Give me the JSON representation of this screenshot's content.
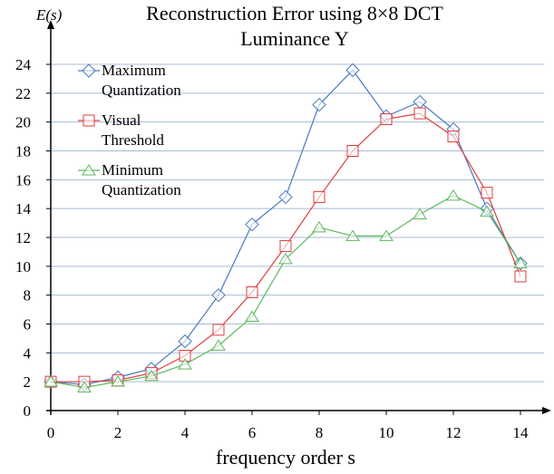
{
  "chart_data": {
    "type": "line",
    "title": "Reconstruction Error using 8×8 DCT",
    "subtitle": "Luminance Y",
    "y_label": "E(s)",
    "x_label": "frequency order s",
    "x": [
      0,
      1,
      2,
      3,
      4,
      5,
      6,
      7,
      8,
      9,
      10,
      11,
      12,
      13,
      14
    ],
    "series": [
      {
        "name": "Maximum Quantization",
        "color": "#4a78be",
        "marker": "diamond",
        "values": [
          2.0,
          1.8,
          2.3,
          2.9,
          4.8,
          8.0,
          12.9,
          14.8,
          21.2,
          23.6,
          20.4,
          21.4,
          19.5,
          14.0,
          10.2
        ]
      },
      {
        "name": "Visual Threshold",
        "color": "#e03c3c",
        "marker": "square",
        "values": [
          2.0,
          2.0,
          2.1,
          2.6,
          3.8,
          5.6,
          8.2,
          11.4,
          14.8,
          18.0,
          20.2,
          20.6,
          19.0,
          15.1,
          9.3
        ]
      },
      {
        "name": "Minimum Quantization",
        "color": "#5cb85c",
        "marker": "triangle",
        "values": [
          2.0,
          1.6,
          2.0,
          2.4,
          3.2,
          4.5,
          6.5,
          10.5,
          12.7,
          12.1,
          12.1,
          13.6,
          14.9,
          13.8,
          10.2
        ]
      }
    ],
    "xlim": [
      0,
      14
    ],
    "xticks": [
      0,
      2,
      4,
      6,
      8,
      10,
      12,
      14
    ],
    "ylim": [
      0,
      24
    ],
    "yticks": [
      0,
      2,
      4,
      6,
      8,
      10,
      12,
      14,
      16,
      18,
      20,
      22,
      24
    ],
    "grid": true,
    "legend": "upper left"
  }
}
